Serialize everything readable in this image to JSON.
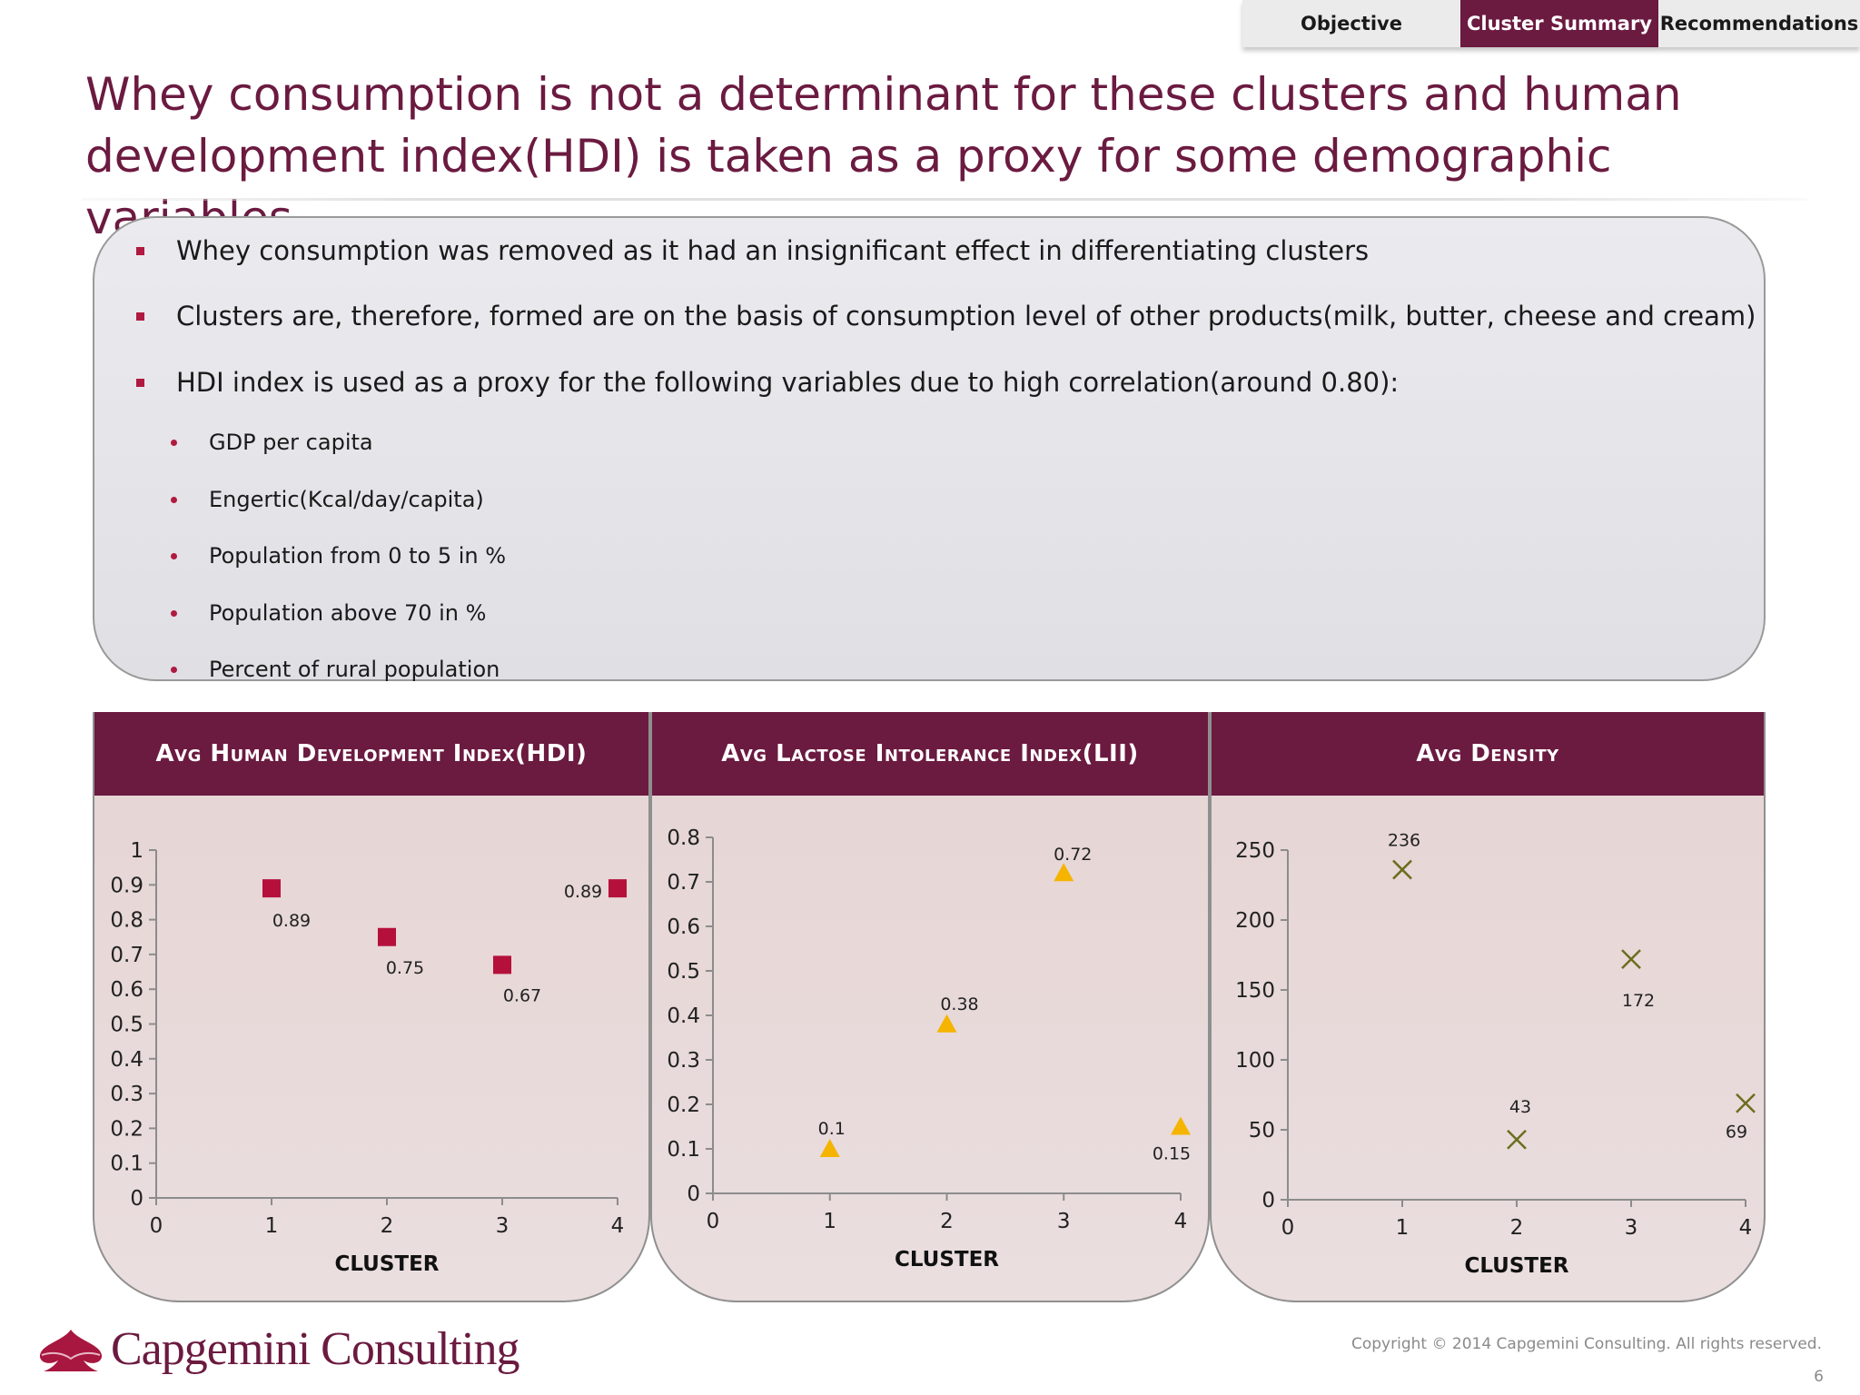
{
  "tabs": [
    {
      "label": "Objective",
      "active": false
    },
    {
      "label": "Cluster Summary",
      "active": true
    },
    {
      "label": "Recommendations",
      "active": false
    }
  ],
  "title": "Whey consumption is not a determinant for these clusters and human development index(HDI) is taken as a proxy for some demographic variables",
  "bullets": [
    {
      "text": "Whey consumption was removed as it had an insignificant effect in differentiating clusters"
    },
    {
      "text": "Clusters are, therefore, formed are on the basis of consumption level of other products(milk, butter, cheese and cream)"
    },
    {
      "text": "HDI index is used as a proxy for the following variables due to high correlation(around 0.80):"
    }
  ],
  "sub_bullets": [
    {
      "text": "GDP per capita"
    },
    {
      "text": "Engertic(Kcal/day/capita)"
    },
    {
      "text": "Population from 0 to 5 in %"
    },
    {
      "text": "Population above 70 in %"
    },
    {
      "text": "Percent of rural population"
    }
  ],
  "colors": {
    "brand": "#6b1a40",
    "hdi_marker": "#b5103c",
    "lii_marker": "#f5b400",
    "density_marker": "#6b6e1e"
  },
  "chart_data": [
    {
      "type": "scatter",
      "title": "Avg Human Development Index(HDI)",
      "xlabel": "CLUSTER",
      "ylabel": "",
      "marker": "square",
      "x": [
        1,
        2,
        3,
        4
      ],
      "y": [
        0.89,
        0.75,
        0.67,
        0.89
      ],
      "data_labels": [
        "0.89",
        "0.75",
        "0.67",
        "0.89"
      ],
      "xlim": [
        0,
        4
      ],
      "ylim": [
        0,
        1
      ],
      "xticks": [
        "0",
        "1",
        "2",
        "3",
        "4"
      ],
      "yticks": [
        "0",
        "0.1",
        "0.2",
        "0.3",
        "0.4",
        "0.5",
        "0.6",
        "0.7",
        "0.8",
        "0.9",
        "1"
      ],
      "grid": false,
      "legend": "none"
    },
    {
      "type": "scatter",
      "title": "Avg Lactose Intolerance Index(LII)",
      "xlabel": "CLUSTER",
      "ylabel": "",
      "marker": "triangle",
      "x": [
        1,
        2,
        3,
        4
      ],
      "y": [
        0.1,
        0.38,
        0.72,
        0.15
      ],
      "data_labels": [
        "0.1",
        "0.38",
        "0.72",
        "0.15"
      ],
      "xlim": [
        0,
        4
      ],
      "ylim": [
        0,
        0.8
      ],
      "xticks": [
        "0",
        "1",
        "2",
        "3",
        "4"
      ],
      "yticks": [
        "0",
        "0.1",
        "0.2",
        "0.3",
        "0.4",
        "0.5",
        "0.6",
        "0.7",
        "0.8"
      ],
      "grid": false,
      "legend": "none"
    },
    {
      "type": "scatter",
      "title": "Avg Density",
      "xlabel": "CLUSTER",
      "ylabel": "",
      "marker": "x",
      "x": [
        1,
        2,
        3,
        4
      ],
      "y": [
        236,
        43,
        172,
        69
      ],
      "data_labels": [
        "236",
        "43",
        "172",
        "69"
      ],
      "xlim": [
        0,
        4
      ],
      "ylim": [
        0,
        250
      ],
      "xticks": [
        "0",
        "1",
        "2",
        "3",
        "4"
      ],
      "yticks": [
        "0",
        "50",
        "100",
        "150",
        "200",
        "250"
      ],
      "grid": false,
      "legend": "none"
    }
  ],
  "footer": {
    "logo_text": "Capgemini Consulting",
    "copyright": "Copyright © 2014 Capgemini Consulting. All rights reserved.",
    "page_number": "6"
  }
}
